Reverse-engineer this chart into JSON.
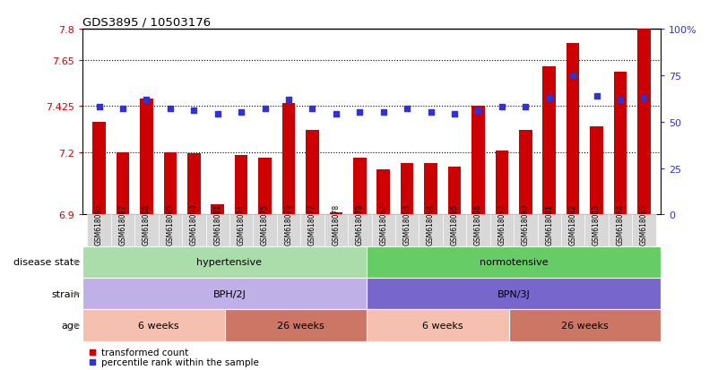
{
  "title": "GDS3895 / 10503176",
  "samples": [
    "GSM618086",
    "GSM618087",
    "GSM618088",
    "GSM618089",
    "GSM618090",
    "GSM618091",
    "GSM618074",
    "GSM618075",
    "GSM618076",
    "GSM618077",
    "GSM618078",
    "GSM618079",
    "GSM618092",
    "GSM618093",
    "GSM618094",
    "GSM618095",
    "GSM618096",
    "GSM618097",
    "GSM618080",
    "GSM618081",
    "GSM618082",
    "GSM618083",
    "GSM618084",
    "GSM618085"
  ],
  "bar_values": [
    7.35,
    7.2,
    7.46,
    7.2,
    7.195,
    6.95,
    7.19,
    7.175,
    7.44,
    7.31,
    6.91,
    7.175,
    7.12,
    7.15,
    7.15,
    7.13,
    7.425,
    7.21,
    7.31,
    7.62,
    7.73,
    7.325,
    7.59,
    7.8
  ],
  "percentile_values": [
    58,
    57,
    62,
    57,
    56,
    54,
    55,
    57,
    62,
    57,
    54,
    55,
    55,
    57,
    55,
    54,
    56,
    58,
    58,
    63,
    75,
    64,
    62,
    63
  ],
  "bar_color": "#cc0000",
  "percentile_color": "#3333cc",
  "ymin": 6.9,
  "ymax": 7.8,
  "yticks": [
    6.9,
    7.2,
    7.425,
    7.65,
    7.8
  ],
  "ytick_labels": [
    "6.9",
    "7.2",
    "7.425",
    "7.65",
    "7.8"
  ],
  "y2min": 0,
  "y2max": 100,
  "y2ticks": [
    0,
    25,
    50,
    75,
    100
  ],
  "y2tick_labels": [
    "0",
    "25",
    "50",
    "75",
    "100%"
  ],
  "dotted_lines": [
    7.65,
    7.425,
    7.2
  ],
  "disease_state_groups": [
    {
      "label": "hypertensive",
      "start": 0,
      "end": 12,
      "color": "#aaddaa"
    },
    {
      "label": "normotensive",
      "start": 12,
      "end": 24,
      "color": "#66cc66"
    }
  ],
  "strain_groups": [
    {
      "label": "BPH/2J",
      "start": 0,
      "end": 12,
      "color": "#c0b0e8"
    },
    {
      "label": "BPN/3J",
      "start": 12,
      "end": 24,
      "color": "#7766cc"
    }
  ],
  "age_groups": [
    {
      "label": "6 weeks",
      "start": 0,
      "end": 6,
      "color": "#f5c0b0"
    },
    {
      "label": "26 weeks",
      "start": 6,
      "end": 12,
      "color": "#cc7766"
    },
    {
      "label": "6 weeks",
      "start": 12,
      "end": 18,
      "color": "#f5c0b0"
    },
    {
      "label": "26 weeks",
      "start": 18,
      "end": 24,
      "color": "#cc7766"
    }
  ],
  "row_labels": [
    "disease state",
    "strain",
    "age"
  ],
  "legend_bar_label": "transformed count",
  "legend_perc_label": "percentile rank within the sample",
  "label_area_color": "#d8d8d8",
  "background_color": "#ffffff"
}
